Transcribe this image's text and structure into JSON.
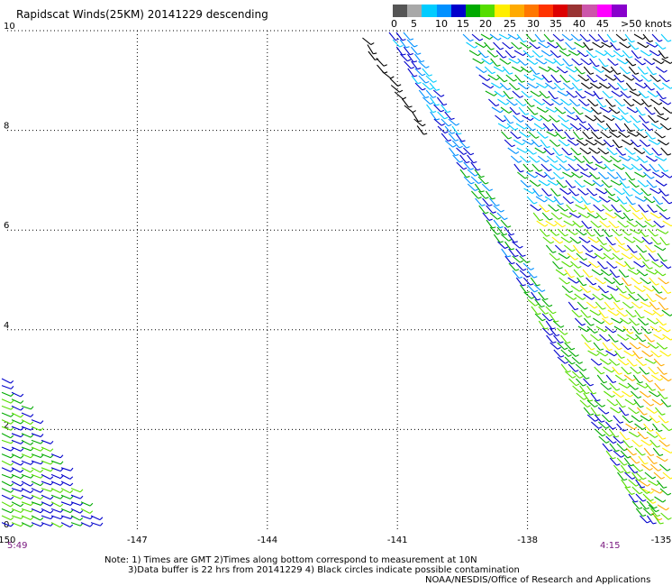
{
  "chart_data": {
    "type": "wind-barbs",
    "title": "Rapidscat Winds(25KM) 20141229 descending",
    "xlim": [
      -150,
      -135
    ],
    "ylim": [
      0,
      10
    ],
    "xticks": [
      -147,
      -144,
      -141,
      -138
    ],
    "xtick_labels": [
      "-147",
      "-144",
      "-141",
      "-138"
    ],
    "edge_xtick_labels": [
      "-150",
      "-135"
    ],
    "yticks": [
      0,
      2,
      4,
      6,
      8,
      10
    ],
    "ytick_labels": [
      "0",
      "2",
      "4",
      "6",
      "8",
      "10"
    ],
    "grid": true,
    "grid_style": "dotted",
    "colorbar": {
      "ticks": [
        "0",
        "5",
        "10",
        "15",
        "20",
        "25",
        "30",
        "35",
        "40",
        "45",
        ">50 knots"
      ],
      "colors": [
        "#555555",
        "#a8a8a8",
        "#00ccff",
        "#0090ff",
        "#0000cc",
        "#00aa00",
        "#55dd00",
        "#ffee00",
        "#ffaa00",
        "#ff7700",
        "#ff3300",
        "#dd0000",
        "#993333",
        "#cc55aa",
        "#ff00ff",
        "#8800cc"
      ]
    },
    "series": [
      {
        "swath": "west",
        "start_lon": -150.0,
        "end_lon": -147.6,
        "lat_top": 3.0,
        "lat_bottom": 0.0,
        "speed_knots": [
          10,
          15,
          20
        ]
      },
      {
        "swath": "east-main",
        "start_lon": -140.0,
        "end_lon": -135.0,
        "lat_top": 10.0,
        "lat_bottom": 0.2,
        "speed_knots": [
          5,
          10,
          15,
          20,
          25,
          30,
          35
        ]
      },
      {
        "swath": "east-outer",
        "start_lon": -142.2,
        "end_lon": -136.0,
        "lat_top": 10.0,
        "lat_bottom": 0.5,
        "speed_knots": [
          10,
          15,
          20
        ]
      }
    ]
  },
  "times": {
    "start": "5:49",
    "end": "4:15"
  },
  "notes": {
    "line1": "Note: 1) Times are GMT 2)Times along bottom correspond to measurement at 10N",
    "line2": "3)Data buffer is 22 hrs from 20141229 4) Black circles indicate possible contamination",
    "credit": "NOAA/NESDIS/Office of Research and Applications"
  }
}
